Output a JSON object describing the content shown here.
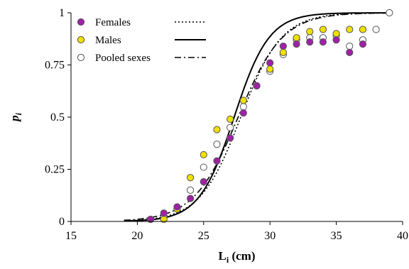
{
  "chart_data": {
    "type": "scatter",
    "xlabel": {
      "main": "L",
      "sub": "i",
      "unit": " (cm)"
    },
    "ylabel": {
      "main": "p",
      "sub": "i"
    },
    "xlim": [
      15,
      40
    ],
    "ylim": [
      0,
      1
    ],
    "x_ticks": [
      15,
      20,
      25,
      30,
      35,
      40
    ],
    "y_ticks": [
      0,
      0.25,
      0.5,
      0.75,
      1
    ],
    "y_tick_labels": [
      "0",
      "0.25",
      "0.5",
      "0.75",
      "1"
    ],
    "grid": false,
    "legend_position": "top-left",
    "series": [
      {
        "name": "Females",
        "marker": "circle",
        "marker_fill": "#a020a8",
        "marker_stroke": "#555555",
        "line_style": "dotted",
        "points": [
          {
            "x": 21,
            "y": 0.01
          },
          {
            "x": 22,
            "y": 0.04
          },
          {
            "x": 23,
            "y": 0.07
          },
          {
            "x": 24,
            "y": 0.11
          },
          {
            "x": 25,
            "y": 0.19
          },
          {
            "x": 26,
            "y": 0.29
          },
          {
            "x": 27,
            "y": 0.4
          },
          {
            "x": 28,
            "y": 0.52
          },
          {
            "x": 29,
            "y": 0.65
          },
          {
            "x": 30,
            "y": 0.76
          },
          {
            "x": 31,
            "y": 0.84
          },
          {
            "x": 32,
            "y": 0.85
          },
          {
            "x": 33,
            "y": 0.86
          },
          {
            "x": 34,
            "y": 0.86
          },
          {
            "x": 35,
            "y": 0.87
          },
          {
            "x": 36,
            "y": 0.81
          },
          {
            "x": 37,
            "y": 0.85
          }
        ],
        "fit": {
          "x50": 27.8,
          "slope": 0.65
        }
      },
      {
        "name": "Males",
        "marker": "circle",
        "marker_fill": "#f0e000",
        "marker_stroke": "#555555",
        "line_style": "solid",
        "points": [
          {
            "x": 21,
            "y": 0.01
          },
          {
            "x": 22,
            "y": 0.01
          },
          {
            "x": 23,
            "y": 0.06
          },
          {
            "x": 24,
            "y": 0.21
          },
          {
            "x": 25,
            "y": 0.32
          },
          {
            "x": 26,
            "y": 0.44
          },
          {
            "x": 27,
            "y": 0.49
          },
          {
            "x": 28,
            "y": 0.58
          },
          {
            "x": 29,
            "y": 0.65
          },
          {
            "x": 30,
            "y": 0.73
          },
          {
            "x": 31,
            "y": 0.81
          },
          {
            "x": 32,
            "y": 0.88
          },
          {
            "x": 33,
            "y": 0.91
          },
          {
            "x": 34,
            "y": 0.92
          },
          {
            "x": 35,
            "y": 0.9
          },
          {
            "x": 36,
            "y": 0.92
          },
          {
            "x": 37,
            "y": 0.92
          }
        ],
        "fit": {
          "x50": 27.3,
          "slope": 0.76
        }
      },
      {
        "name": "Pooled sexes",
        "marker": "circle",
        "marker_fill": "#ffffff",
        "marker_stroke": "#555555",
        "line_style": "dashdot",
        "points": [
          {
            "x": 21,
            "y": 0.01
          },
          {
            "x": 22,
            "y": 0.02
          },
          {
            "x": 23,
            "y": 0.06
          },
          {
            "x": 24,
            "y": 0.15
          },
          {
            "x": 25,
            "y": 0.26
          },
          {
            "x": 26,
            "y": 0.37
          },
          {
            "x": 27,
            "y": 0.45
          },
          {
            "x": 28,
            "y": 0.55
          },
          {
            "x": 29,
            "y": 0.65
          },
          {
            "x": 30,
            "y": 0.72
          },
          {
            "x": 31,
            "y": 0.8
          },
          {
            "x": 32,
            "y": 0.87
          },
          {
            "x": 33,
            "y": 0.88
          },
          {
            "x": 34,
            "y": 0.88
          },
          {
            "x": 35,
            "y": 0.89
          },
          {
            "x": 36,
            "y": 0.84
          },
          {
            "x": 37,
            "y": 0.87
          },
          {
            "x": 38,
            "y": 0.92
          },
          {
            "x": 39,
            "y": 1.0
          }
        ],
        "fit": {
          "x50": 27.6,
          "slope": 0.6
        }
      }
    ]
  }
}
